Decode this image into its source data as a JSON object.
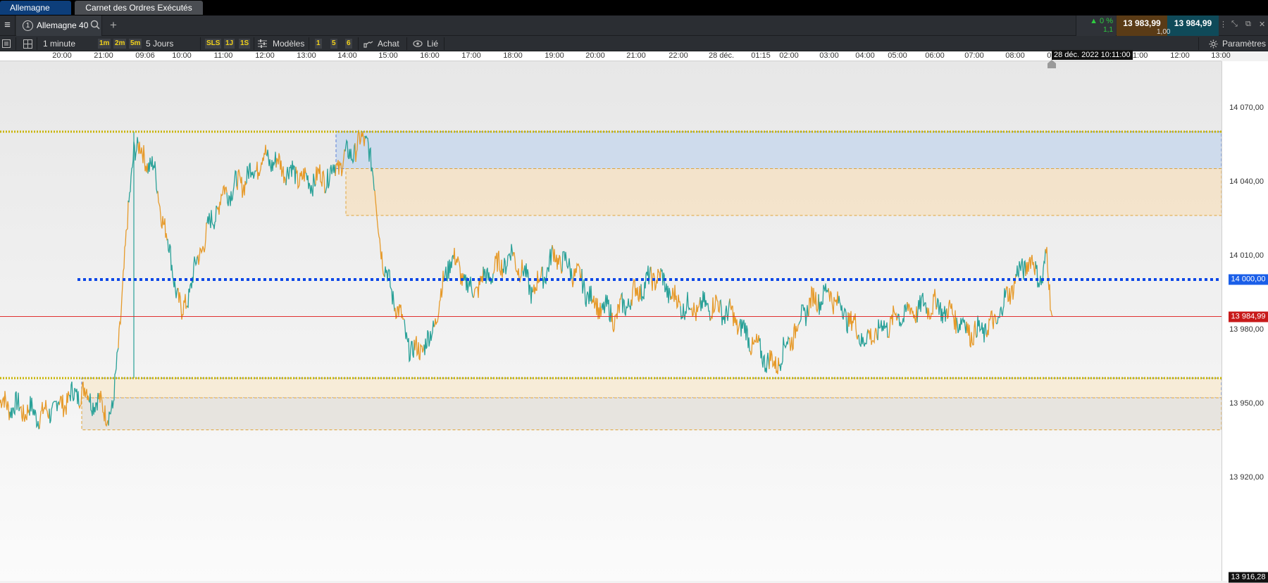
{
  "top_tabs": [
    "Allemagne 40",
    "Carnet des Ordres Exécutés"
  ],
  "instrument": {
    "number": "1",
    "name": "Allemagne 40",
    "change_pct": "▲ 0 %",
    "change_value": "1,1",
    "bid": "13 983,99",
    "ask": "13 984,99",
    "spread": "1,00"
  },
  "toolbar": {
    "interval": "1 minute",
    "quick_intervals": [
      "1m",
      "2m",
      "5m"
    ],
    "range": "5 Jours",
    "quick_ranges": [
      "SLS",
      "1J",
      "1S"
    ],
    "templates_label": "Modèles",
    "quick_numbers": [
      "1",
      "5",
      "6"
    ],
    "buy_label": "Achat",
    "linked_label": "Lié",
    "settings_label": "Paramètres"
  },
  "time_axis": {
    "labels": [
      "20:00",
      "21:00",
      "09:06",
      "10:00",
      "11:00",
      "12:00",
      "13:00",
      "14:00",
      "15:00",
      "16:00",
      "17:00",
      "18:00",
      "19:00",
      "20:00",
      "21:00",
      "22:00",
      "28 déc.",
      "01:15",
      "02:00",
      "03:00",
      "04:00",
      "05:00",
      "06:00",
      "07:00",
      "08:00",
      "09:00",
      "11:00",
      "12:00",
      "13:00"
    ],
    "cursor_tooltip": "28 déc. 2022 10:11:00"
  },
  "price_axis": {
    "labels": [
      "14 070,00",
      "14 040,00",
      "14 010,00",
      "13 980,00",
      "13 950,00",
      "13 920,00"
    ],
    "marked_level": "14 000,00",
    "current_price": "13 984,99",
    "low_marker": "13 916,28"
  },
  "chart_data": {
    "type": "line",
    "instrument": "Allemagne 40",
    "interval": "1 minute",
    "y_range": [
      13916,
      14090
    ],
    "current_price": 13984.99,
    "horizontal_lines": [
      {
        "price": 14000,
        "style": "dotted",
        "color": "#0a46e6"
      },
      {
        "price": 13984.99,
        "style": "solid",
        "color": "#e03030"
      },
      {
        "price": 14060,
        "style": "dotted",
        "color": "#c9b400"
      },
      {
        "price": 13960,
        "style": "dotted",
        "color": "#c9b400"
      }
    ],
    "zones": [
      {
        "from_time": "14:00",
        "top": 14060,
        "bottom": 14045,
        "color": "#c9d8ec"
      },
      {
        "from_time": "14:00",
        "top": 14045,
        "bottom": 14026,
        "color": "#f5e2c6"
      },
      {
        "from_time": "20:30",
        "top": 13960,
        "bottom": 13952,
        "color": "#f7ead2"
      },
      {
        "from_time": "20:30",
        "top": 13952,
        "bottom": 13939,
        "color": "#e4e1db"
      }
    ],
    "series": [
      {
        "times": [
          "20:00",
          "20:30",
          "21:00",
          "21:30",
          "09:06",
          "09:30",
          "10:00",
          "10:30",
          "11:00",
          "11:30",
          "12:00",
          "12:30",
          "13:00",
          "13:30",
          "14:00",
          "14:30",
          "15:00",
          "15:30",
          "16:00",
          "16:30",
          "17:00",
          "17:30",
          "18:00",
          "18:30",
          "19:00",
          "19:30",
          "20:00",
          "20:30",
          "21:00",
          "21:30",
          "22:00",
          "22:30",
          "23:00",
          "23:30",
          "01:15",
          "01:45",
          "02:00",
          "02:30",
          "03:00",
          "03:30",
          "04:00",
          "04:30",
          "05:00",
          "05:30",
          "06:00",
          "06:30",
          "07:00",
          "07:30",
          "08:00",
          "08:30",
          "09:00",
          "09:20",
          "09:40",
          "10:00",
          "10:11"
        ],
        "values": [
          13950,
          13945,
          13955,
          13945,
          14055,
          14045,
          13985,
          14015,
          14035,
          14040,
          14050,
          14045,
          14040,
          14042,
          14050,
          14058,
          14005,
          13970,
          13975,
          14010,
          13995,
          14003,
          14010,
          13995,
          14010,
          14003,
          13990,
          13985,
          13995,
          14002,
          13990,
          13988,
          13990,
          13985,
          13970,
          13965,
          13975,
          13990,
          13995,
          13985,
          13975,
          13980,
          13985,
          13988,
          13990,
          13985,
          13978,
          13982,
          14000,
          14008,
          14000,
          14005,
          14010,
          13995,
          13985
        ]
      }
    ]
  }
}
